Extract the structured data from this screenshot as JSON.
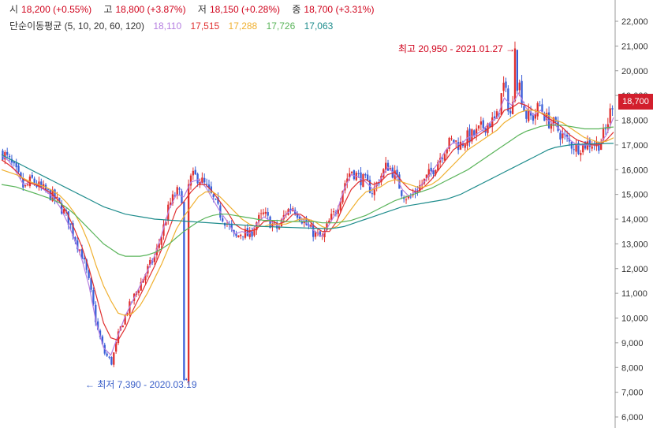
{
  "header": {
    "ohlc": [
      {
        "label": "시",
        "value": "18,200 (+0.55%)"
      },
      {
        "label": "고",
        "value": "18,800 (+3.87%)"
      },
      {
        "label": "저",
        "value": "18,150 (+0.28%)"
      },
      {
        "label": "종",
        "value": "18,700 (+3.31%)"
      }
    ],
    "ma_title": "단순이동평균 (5, 10, 20, 60, 120)",
    "ma_values": [
      {
        "value": "18,110",
        "color": "#b57ee0"
      },
      {
        "value": "17,515",
        "color": "#e03030"
      },
      {
        "value": "17,288",
        "color": "#f0b030"
      },
      {
        "value": "17,726",
        "color": "#5ab45a"
      },
      {
        "value": "17,063",
        "color": "#1e8c8c"
      }
    ]
  },
  "annotations": {
    "high": "최고 20,950 - 2021.01.27 →",
    "low": "← 최저 7,390 - 2020.03.19"
  },
  "current_price": "18,700",
  "colors": {
    "up": "#e0302f",
    "down": "#3a5fd8",
    "ma5": "#b57ee0",
    "ma10": "#e03030",
    "ma20": "#f0b030",
    "ma60": "#5ab45a",
    "ma120": "#1e8c8c",
    "axis_text": "#333333",
    "badge": "#d21f2d"
  },
  "chart_data": {
    "type": "candlestick",
    "y_axis": {
      "min": 6000,
      "max": 22000,
      "position": "right",
      "ticks": [
        6000,
        7000,
        8000,
        9000,
        10000,
        11000,
        12000,
        13000,
        14000,
        15000,
        16000,
        17000,
        18000,
        19000,
        20000,
        21000,
        22000
      ],
      "tick_labels": [
        "6,000",
        "7,000",
        "8,000",
        "9,000",
        "10,000",
        "11,000",
        "12,000",
        "13,000",
        "14,000",
        "15,000",
        "16,000",
        "17,000",
        "18,000",
        "19,000",
        "20,000",
        "21,000",
        "22,000"
      ]
    },
    "grid": false,
    "legend": "top-left",
    "high": {
      "value": 20950,
      "date": "2021.01.27"
    },
    "low": {
      "value": 7390,
      "date": "2020.03.19"
    },
    "close_trajectory": [
      16700,
      16300,
      15800,
      15200,
      15600,
      15300,
      15100,
      14900,
      14500,
      14000,
      13200,
      12500,
      11300,
      9600,
      8600,
      8200,
      9400,
      10200,
      10800,
      11400,
      12000,
      12500,
      13500,
      14600,
      15100,
      14800,
      15700,
      15700,
      15300,
      14800,
      14200,
      13800,
      13200,
      13500,
      13300,
      13900,
      14200,
      13800,
      13600,
      14300,
      14500,
      14100,
      13700,
      13400,
      13200,
      13900,
      14400,
      15400,
      16000,
      15700,
      15500,
      15100,
      15700,
      16200,
      15800,
      15100,
      14800,
      15200,
      15500,
      15900,
      16400,
      16900,
      17200,
      17000,
      17300,
      17400,
      17700,
      17900,
      18000,
      19400,
      18200,
      19700,
      18200,
      18100,
      18600,
      18000,
      17800,
      17400,
      17100,
      16900,
      17000,
      17100,
      17000,
      17500,
      18700
    ],
    "series": [
      {
        "name": "5",
        "values": [
          16600,
          16350,
          15900,
          15400,
          15500,
          15350,
          15150,
          14900,
          14500,
          13900,
          13200,
          12400,
          11300,
          9800,
          8800,
          8500,
          9300,
          10100,
          10700,
          11300,
          11900,
          12500,
          13400,
          14400,
          15000,
          14900,
          15500,
          15600,
          15300,
          14800,
          14300,
          13900,
          13400,
          13500,
          13400,
          13800,
          14100,
          13900,
          13700,
          14200,
          14400,
          14100,
          13800,
          13500,
          13300,
          13800,
          14300,
          15200,
          15800,
          15700,
          15500,
          15200,
          15600,
          16100,
          15800,
          15200,
          14900,
          15200,
          15500,
          15900,
          16300,
          16800,
          17100,
          17000,
          17300,
          17400,
          17600,
          17900,
          18100,
          18900,
          18600,
          19100,
          18500,
          18200,
          18400,
          18000,
          17800,
          17500,
          17200,
          17000,
          17000,
          17000,
          17000,
          17400,
          18110
        ]
      },
      {
        "name": "10",
        "values": [
          16400,
          16200,
          15950,
          15600,
          15450,
          15350,
          15200,
          15000,
          14700,
          14250,
          13600,
          12900,
          12000,
          10900,
          9800,
          9200,
          9100,
          9600,
          10300,
          10900,
          11500,
          12100,
          12800,
          13600,
          14400,
          14700,
          15100,
          15400,
          15400,
          15100,
          14700,
          14300,
          13800,
          13600,
          13500,
          13600,
          13900,
          13950,
          13800,
          13900,
          14200,
          14200,
          14000,
          13700,
          13500,
          13500,
          13900,
          14600,
          15200,
          15500,
          15600,
          15400,
          15500,
          15800,
          15900,
          15500,
          15200,
          15100,
          15300,
          15600,
          16000,
          16400,
          16800,
          17000,
          17100,
          17300,
          17500,
          17700,
          17900,
          18400,
          18500,
          18700,
          18600,
          18400,
          18300,
          18100,
          17900,
          17700,
          17400,
          17200,
          17100,
          17000,
          17000,
          17200,
          17515
        ]
      },
      {
        "name": "20",
        "values": [
          16000,
          15900,
          15800,
          15650,
          15500,
          15400,
          15300,
          15150,
          14950,
          14650,
          14250,
          13700,
          13000,
          12100,
          11300,
          10700,
          10200,
          10100,
          10200,
          10500,
          11000,
          11600,
          12200,
          12900,
          13600,
          14100,
          14500,
          14900,
          15100,
          15100,
          14900,
          14600,
          14300,
          14000,
          13800,
          13700,
          13700,
          13800,
          13800,
          13800,
          13900,
          14000,
          14000,
          13900,
          13700,
          13600,
          13700,
          14000,
          14400,
          14800,
          15100,
          15200,
          15300,
          15500,
          15600,
          15500,
          15400,
          15300,
          15300,
          15400,
          15600,
          15900,
          16200,
          16500,
          16800,
          17000,
          17200,
          17400,
          17600,
          17900,
          18100,
          18300,
          18400,
          18400,
          18300,
          18200,
          18000,
          17900,
          17700,
          17500,
          17300,
          17200,
          17100,
          17150,
          17288
        ]
      },
      {
        "name": "60",
        "values": [
          15400,
          15350,
          15300,
          15200,
          15100,
          15000,
          14900,
          14800,
          14650,
          14450,
          14200,
          13900,
          13600,
          13300,
          13000,
          12800,
          12600,
          12500,
          12500,
          12500,
          12550,
          12650,
          12800,
          13000,
          13250,
          13500,
          13700,
          13900,
          14050,
          14150,
          14200,
          14200,
          14150,
          14100,
          14050,
          14000,
          13950,
          13950,
          13950,
          13900,
          13900,
          13900,
          13900,
          13900,
          13850,
          13850,
          13850,
          13900,
          13950,
          14050,
          14150,
          14300,
          14450,
          14600,
          14750,
          14850,
          14950,
          15050,
          15150,
          15250,
          15400,
          15550,
          15700,
          15850,
          16000,
          16200,
          16400,
          16600,
          16800,
          17000,
          17200,
          17400,
          17550,
          17650,
          17750,
          17800,
          17800,
          17800,
          17750,
          17700,
          17650,
          17650,
          17650,
          17700,
          17726
        ]
      },
      {
        "name": "120",
        "values": [
          16600,
          16450,
          16300,
          16150,
          16000,
          15850,
          15700,
          15550,
          15400,
          15250,
          15100,
          14950,
          14800,
          14650,
          14500,
          14400,
          14300,
          14200,
          14150,
          14100,
          14050,
          14000,
          13980,
          13960,
          13940,
          13920,
          13900,
          13880,
          13860,
          13840,
          13820,
          13800,
          13780,
          13760,
          13740,
          13720,
          13700,
          13690,
          13680,
          13670,
          13660,
          13650,
          13640,
          13630,
          13620,
          13610,
          13650,
          13700,
          13800,
          13900,
          14000,
          14100,
          14200,
          14300,
          14400,
          14500,
          14550,
          14600,
          14650,
          14700,
          14750,
          14800,
          14900,
          15000,
          15150,
          15300,
          15450,
          15600,
          15750,
          15900,
          16050,
          16200,
          16350,
          16500,
          16650,
          16800,
          16900,
          16950,
          17000,
          17020,
          17030,
          17040,
          17050,
          17060,
          17063
        ]
      }
    ]
  }
}
